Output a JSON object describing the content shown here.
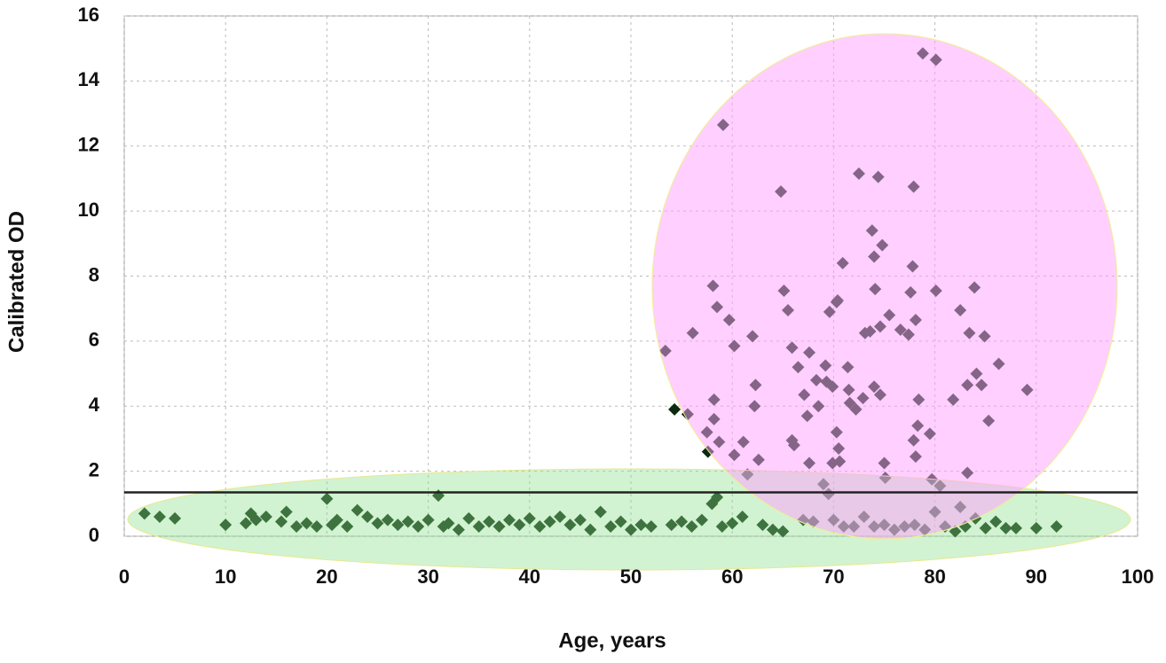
{
  "chart_data": {
    "type": "scatter",
    "xlabel": "Age, years",
    "ylabel": "Calibrated OD",
    "xlim": [
      0,
      100
    ],
    "ylim": [
      0,
      16
    ],
    "xticks": [
      0,
      10,
      20,
      30,
      40,
      50,
      60,
      70,
      80,
      90,
      100
    ],
    "yticks": [
      0,
      2,
      4,
      6,
      8,
      10,
      12,
      14,
      16
    ],
    "grid": true,
    "threshold": 1.35,
    "series": [
      {
        "color": "#0b2a0e",
        "x": [
          2,
          3.5,
          5,
          10,
          12,
          12.5,
          13,
          14,
          15.5,
          16,
          17,
          18,
          19,
          20,
          20.5,
          21,
          22,
          23,
          24,
          25,
          26,
          27,
          28,
          29,
          30,
          31,
          31.5,
          32,
          33,
          34,
          35,
          36,
          37,
          38,
          39,
          40,
          41,
          42,
          43,
          44,
          45,
          46,
          47,
          48,
          49,
          50,
          51,
          52,
          54,
          55,
          56,
          57,
          58,
          58.5,
          59,
          60,
          61,
          61.5,
          63,
          64,
          65,
          67,
          68,
          69,
          69.5,
          70,
          71,
          72,
          73,
          74,
          75,
          76,
          77,
          78,
          79,
          80,
          80.5,
          81,
          82,
          82.5,
          83,
          84,
          85,
          86,
          87,
          88,
          90,
          92,
          53.4,
          54.3,
          55.6,
          56.1,
          58.1,
          58.5,
          59.1,
          59.7,
          60.2,
          58.2,
          58.2,
          57.5,
          57.6,
          58.7,
          61.1,
          60.2,
          62.0,
          62.3,
          62.2,
          62.6,
          64.8,
          65.1,
          65.5,
          65.9,
          66.5,
          65.9,
          66.1,
          67.1,
          67.6,
          67.4,
          68.3,
          68.5,
          69.2,
          69.6,
          70.3,
          70.4,
          69.3,
          69.9,
          70.3,
          70.5,
          69.9,
          70.6,
          67.6,
          70.9,
          71.4,
          71.5,
          71.6,
          72.2,
          72.9,
          72.5,
          74.4,
          73.8,
          74.0,
          74.1,
          73.1,
          73.6,
          74.6,
          75.5,
          74.0,
          74.6,
          74.8,
          75.0,
          75.1,
          76.6,
          77.4,
          77.6,
          77.8,
          77.9,
          78.1,
          77.9,
          78.3,
          78.1,
          78.4,
          78.8,
          80.1,
          79.5,
          79.7,
          80.1,
          82.5,
          83.4,
          83.9,
          84.9,
          84.1,
          83.2,
          84.6,
          81.8,
          85.3,
          86.3,
          83.2,
          89.1
        ],
        "values": [
          0.7,
          0.6,
          0.55,
          0.35,
          0.4,
          0.7,
          0.5,
          0.6,
          0.45,
          0.75,
          0.3,
          0.4,
          0.3,
          1.15,
          0.35,
          0.5,
          0.3,
          0.8,
          0.6,
          0.4,
          0.5,
          0.35,
          0.45,
          0.3,
          0.5,
          1.25,
          0.3,
          0.4,
          0.2,
          0.55,
          0.3,
          0.45,
          0.3,
          0.5,
          0.35,
          0.55,
          0.3,
          0.45,
          0.6,
          0.35,
          0.5,
          0.2,
          0.75,
          0.3,
          0.45,
          0.2,
          0.35,
          0.3,
          0.35,
          0.45,
          0.3,
          0.5,
          1.0,
          1.2,
          0.3,
          0.4,
          0.6,
          1.9,
          0.35,
          0.2,
          0.15,
          0.5,
          0.45,
          1.6,
          1.3,
          0.5,
          0.3,
          0.3,
          0.6,
          0.3,
          0.35,
          0.2,
          0.3,
          0.35,
          0.2,
          0.75,
          1.55,
          0.3,
          0.15,
          0.9,
          0.3,
          0.55,
          0.25,
          0.45,
          0.25,
          0.25,
          0.25,
          0.3,
          5.7,
          3.9,
          3.75,
          6.25,
          7.7,
          7.05,
          12.65,
          6.65,
          5.85,
          4.2,
          3.6,
          3.2,
          2.6,
          2.9,
          2.9,
          2.5,
          6.15,
          4.65,
          4.0,
          2.35,
          10.6,
          7.55,
          6.95,
          5.8,
          5.2,
          2.95,
          2.8,
          4.35,
          5.65,
          3.7,
          4.8,
          4.0,
          5.25,
          6.9,
          7.2,
          7.25,
          4.75,
          4.6,
          3.2,
          2.7,
          2.25,
          2.3,
          2.25,
          8.4,
          5.2,
          4.5,
          4.1,
          3.9,
          4.25,
          11.15,
          11.05,
          9.4,
          8.6,
          7.6,
          6.25,
          6.3,
          6.45,
          6.8,
          4.6,
          4.35,
          8.95,
          2.25,
          1.8,
          6.35,
          6.2,
          7.5,
          8.3,
          10.75,
          6.65,
          2.95,
          3.4,
          2.45,
          4.2,
          14.85,
          14.65,
          3.15,
          1.75,
          7.55,
          6.95,
          6.25,
          7.65,
          6.15,
          5.0,
          4.65,
          4.65,
          4.2,
          3.55,
          5.3,
          1.95,
          4.5
        ]
      }
    ]
  }
}
